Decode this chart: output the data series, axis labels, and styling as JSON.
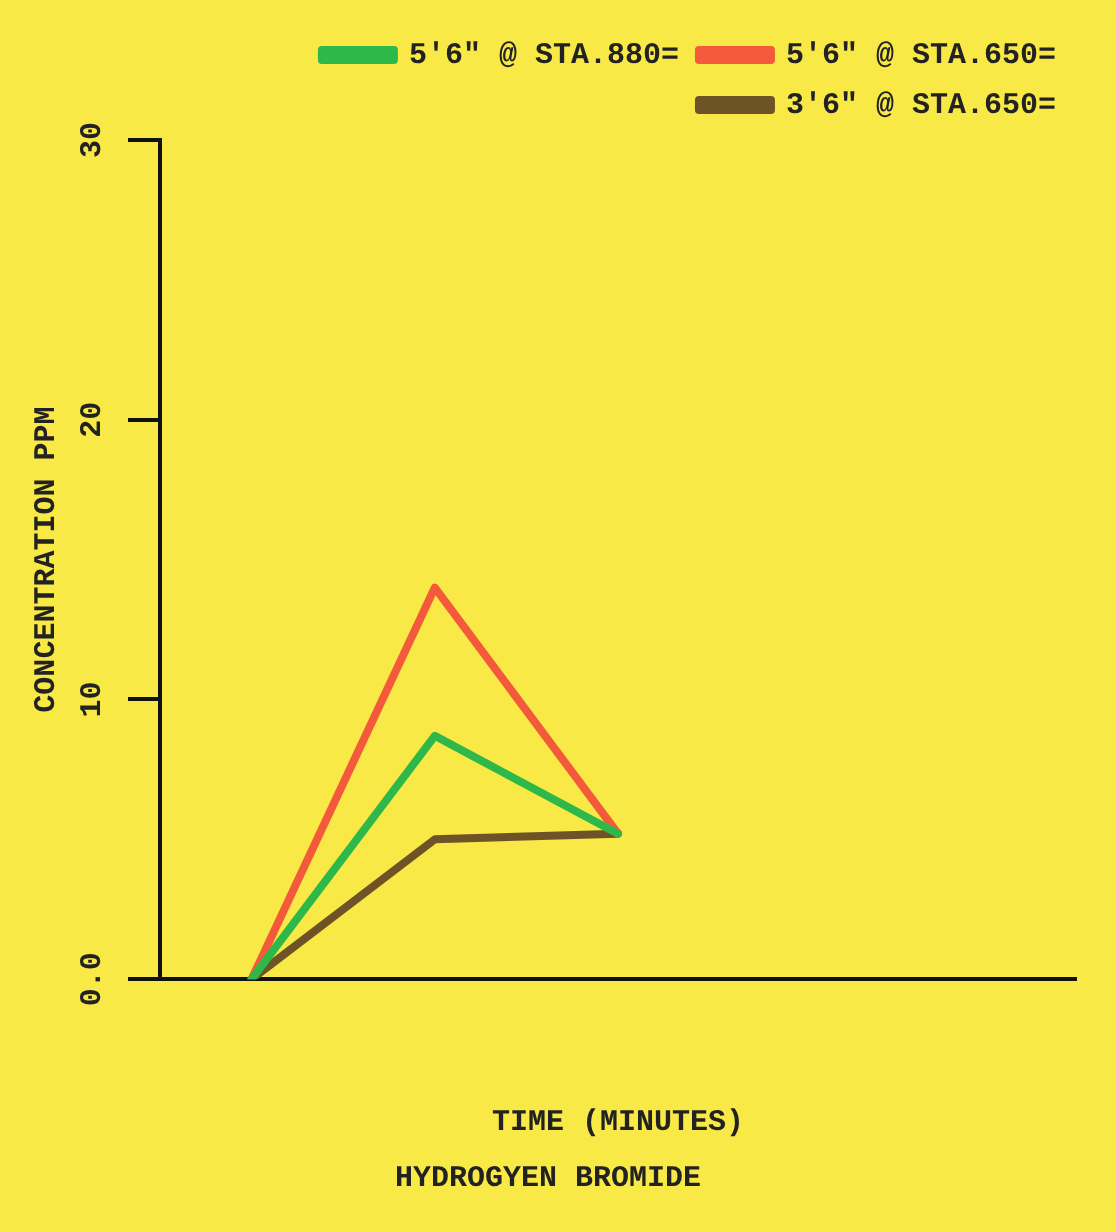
{
  "chart_data": {
    "type": "line",
    "title": "HYDROGYEN BROMIDE",
    "xlabel": "TIME (MINUTES)",
    "ylabel": "CONCENTRATION PPM",
    "categories": [
      null,
      null,
      null,
      null,
      null
    ],
    "series": [
      {
        "name": "5'6\" @ STA.880=",
        "color": "#2fb84a",
        "values": [
          0,
          8.7,
          5.2,
          null,
          null
        ]
      },
      {
        "name": "5'6\" @ STA.650=",
        "color": "#f35a3c",
        "values": [
          0,
          14,
          5.2,
          null,
          null
        ]
      },
      {
        "name": "3'6\" @ STA.650=",
        "color": "#6e5326",
        "values": [
          0,
          5,
          5.2,
          null,
          null
        ]
      }
    ],
    "ylim": [
      0,
      30
    ],
    "yticks": [
      {
        "value": 0,
        "label": "0.0"
      },
      10,
      20,
      30
    ],
    "grid": false,
    "legend": "top right",
    "marker": "none",
    "line_style": "solid"
  }
}
